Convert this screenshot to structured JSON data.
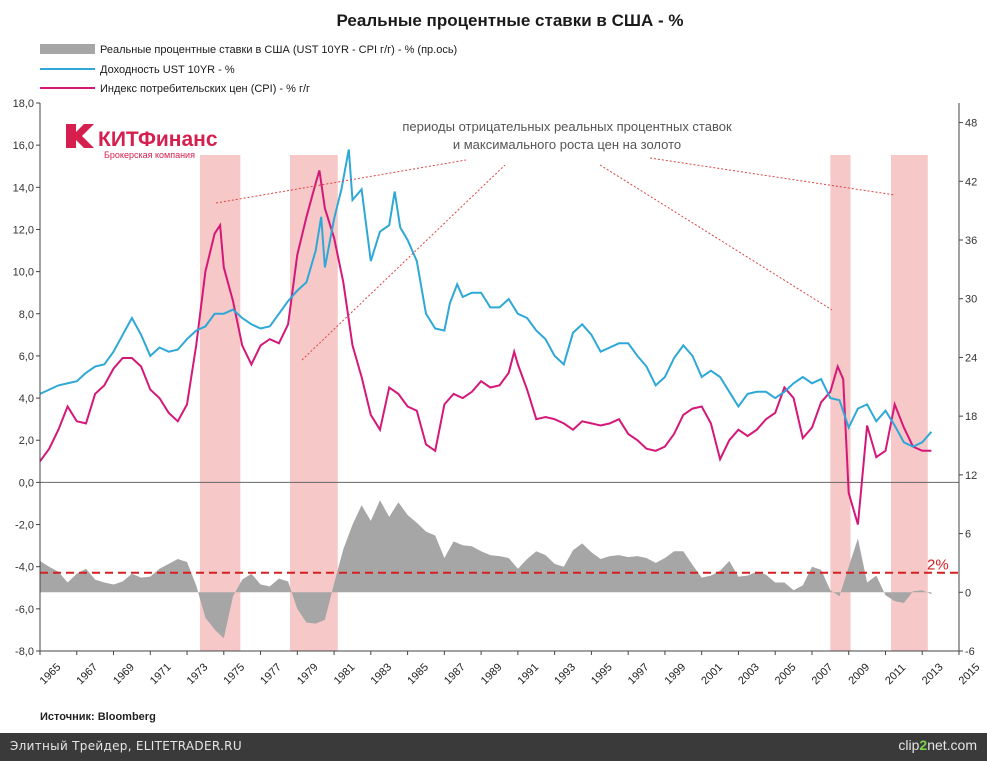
{
  "chart_data": {
    "type": "line",
    "title": "Реальные процентные ставки в США - %",
    "legend": [
      {
        "label": "Реальные процентные ставки в США (UST 10YR - CPI г/г) - % (пр.ось)",
        "color": "#a6a6a6",
        "kind": "area"
      },
      {
        "label": "Доходность UST 10YR - %",
        "color": "#2ea8d6",
        "kind": "line"
      },
      {
        "label": "Индекс потребительских цен (CPI) - % г/г",
        "color": "#d4187a",
        "kind": "line"
      }
    ],
    "legend_position": "top-left",
    "y_left": {
      "min": -8,
      "max": 18,
      "step": 2,
      "ticks": [
        "18,0",
        "16,0",
        "14,0",
        "12,0",
        "10,0",
        "8,0",
        "6,0",
        "4,0",
        "2,0",
        "0,0",
        "-2,0",
        "-4,0",
        "-6,0",
        "-8,0"
      ]
    },
    "y_right": {
      "min": -6,
      "max": 50,
      "ticks": [
        "48",
        "42",
        "36",
        "30",
        "24",
        "18",
        "12",
        "6",
        "0",
        "-6"
      ]
    },
    "x_axis": {
      "min": 1965,
      "max": 2015,
      "ticks": [
        "1965",
        "1967",
        "1969",
        "1971",
        "1973",
        "1975",
        "1977",
        "1979",
        "1981",
        "1983",
        "1985",
        "1987",
        "1989",
        "1991",
        "1993",
        "1995",
        "1997",
        "1999",
        "2001",
        "2003",
        "2005",
        "2007",
        "2009",
        "2011",
        "2013",
        "2015"
      ]
    },
    "grid": false,
    "highlight_periods": [
      [
        1973.7,
        1975.9
      ],
      [
        1978.6,
        1981.2
      ],
      [
        2008.0,
        2009.1
      ],
      [
        2011.3,
        2013.3
      ]
    ],
    "highlight_color": "#f7c8c8",
    "reference_line": {
      "value": 2,
      "axis": "right",
      "label": "2%",
      "color": "#d42020"
    },
    "annotation": {
      "lines": [
        "периоды отрицательных реальных процентных ставок",
        "и максимального роста цен на золото"
      ]
    },
    "series": [
      {
        "name": "Доходность UST 10YR - %",
        "axis": "left",
        "color": "#2ea8d6",
        "x": [
          1965,
          1966,
          1967,
          1967.5,
          1968,
          1968.5,
          1969,
          1969.5,
          1970,
          1970.5,
          1971,
          1971.5,
          1972,
          1972.5,
          1973,
          1973.5,
          1974,
          1974.5,
          1975,
          1975.5,
          1976,
          1976.5,
          1977,
          1977.5,
          1978,
          1978.5,
          1979,
          1979.5,
          1980,
          1980.3,
          1980.5,
          1981,
          1981.4,
          1981.8,
          1982,
          1982.5,
          1983,
          1983.5,
          1984,
          1984.3,
          1984.6,
          1985,
          1985.5,
          1986,
          1986.5,
          1987,
          1987.3,
          1987.7,
          1988,
          1988.5,
          1989,
          1989.5,
          1990,
          1990.5,
          1991,
          1991.5,
          1992,
          1992.5,
          1993,
          1993.5,
          1994,
          1994.5,
          1995,
          1995.5,
          1996,
          1996.5,
          1997,
          1997.5,
          1998,
          1998.5,
          1999,
          1999.5,
          2000,
          2000.5,
          2001,
          2001.5,
          2002,
          2002.5,
          2003,
          2003.5,
          2004,
          2004.5,
          2005,
          2005.5,
          2006,
          2006.5,
          2007,
          2007.5,
          2008,
          2008.5,
          2009,
          2009.5,
          2010,
          2010.5,
          2011,
          2011.5,
          2012,
          2012.5,
          2013,
          2013.5
        ],
        "y": [
          4.2,
          4.6,
          4.8,
          5.2,
          5.5,
          5.6,
          6.2,
          7.0,
          7.8,
          7.0,
          6.0,
          6.4,
          6.2,
          6.3,
          6.8,
          7.2,
          7.4,
          8.0,
          8.0,
          8.2,
          7.8,
          7.5,
          7.3,
          7.4,
          8.0,
          8.6,
          9.1,
          9.5,
          11.0,
          12.6,
          10.2,
          12.5,
          13.9,
          15.8,
          13.4,
          13.9,
          10.5,
          11.9,
          12.2,
          13.8,
          12.1,
          11.5,
          10.5,
          8.0,
          7.3,
          7.2,
          8.5,
          9.4,
          8.8,
          9.0,
          9.0,
          8.3,
          8.3,
          8.7,
          8.0,
          7.8,
          7.2,
          6.8,
          6.0,
          5.6,
          7.1,
          7.5,
          7.0,
          6.2,
          6.4,
          6.6,
          6.6,
          6.0,
          5.5,
          4.6,
          5.0,
          5.9,
          6.5,
          6.0,
          5.0,
          5.3,
          5.0,
          4.3,
          3.6,
          4.2,
          4.3,
          4.3,
          4.0,
          4.3,
          4.7,
          5.0,
          4.7,
          4.9,
          4.0,
          3.9,
          2.6,
          3.5,
          3.7,
          2.9,
          3.4,
          2.7,
          1.9,
          1.7,
          1.9,
          2.4
        ]
      },
      {
        "name": "Индекс потребительских цен (CPI) - % г/г",
        "axis": "left",
        "color": "#d4187a",
        "x": [
          1965,
          1965.5,
          1966,
          1966.5,
          1967,
          1967.5,
          1968,
          1968.5,
          1969,
          1969.5,
          1970,
          1970.5,
          1971,
          1971.5,
          1972,
          1972.5,
          1973,
          1973.5,
          1974,
          1974.5,
          1974.8,
          1975,
          1975.5,
          1976,
          1976.5,
          1977,
          1977.5,
          1978,
          1978.5,
          1979,
          1979.5,
          1980,
          1980.2,
          1980.5,
          1981,
          1981.5,
          1982,
          1982.5,
          1983,
          1983.5,
          1984,
          1984.5,
          1985,
          1985.5,
          1986,
          1986.5,
          1987,
          1987.5,
          1988,
          1988.5,
          1989,
          1989.5,
          1990,
          1990.5,
          1990.8,
          1991,
          1991.5,
          1992,
          1992.5,
          1993,
          1993.5,
          1994,
          1994.5,
          1995,
          1995.5,
          1996,
          1996.5,
          1997,
          1997.5,
          1998,
          1998.5,
          1999,
          1999.5,
          2000,
          2000.5,
          2001,
          2001.5,
          2002,
          2002.5,
          2003,
          2003.5,
          2004,
          2004.5,
          2005,
          2005.5,
          2006,
          2006.5,
          2007,
          2007.5,
          2008,
          2008.4,
          2008.7,
          2009,
          2009.5,
          2010,
          2010.5,
          2011,
          2011.5,
          2012,
          2012.5,
          2013,
          2013.5
        ],
        "y": [
          1.0,
          1.6,
          2.5,
          3.6,
          2.9,
          2.8,
          4.2,
          4.6,
          5.4,
          5.9,
          5.9,
          5.5,
          4.4,
          4.0,
          3.3,
          2.9,
          3.7,
          6.5,
          10.0,
          11.8,
          12.2,
          10.2,
          8.6,
          6.5,
          5.6,
          6.5,
          6.8,
          6.6,
          7.5,
          10.8,
          12.6,
          14.2,
          14.8,
          13.0,
          11.6,
          9.5,
          6.5,
          5.0,
          3.2,
          2.5,
          4.5,
          4.2,
          3.6,
          3.4,
          1.8,
          1.5,
          3.7,
          4.2,
          4.0,
          4.3,
          4.8,
          4.5,
          4.6,
          5.2,
          6.2,
          5.6,
          4.4,
          3.0,
          3.1,
          3.0,
          2.8,
          2.5,
          2.9,
          2.8,
          2.7,
          2.8,
          3.0,
          2.3,
          2.0,
          1.6,
          1.5,
          1.7,
          2.3,
          3.2,
          3.5,
          3.6,
          2.8,
          1.1,
          2.0,
          2.5,
          2.2,
          2.5,
          3.0,
          3.3,
          4.5,
          4.0,
          2.1,
          2.6,
          3.8,
          4.3,
          5.5,
          4.9,
          -0.5,
          -2.0,
          2.7,
          1.2,
          1.5,
          3.7,
          2.6,
          1.7,
          1.5,
          1.5
        ]
      },
      {
        "name": "Реальные процентные ставки в США (UST 10YR - CPI г/г) - % (пр.ось)",
        "axis": "right",
        "kind": "area",
        "color": "#a6a6a6",
        "x": [
          1965,
          1965.5,
          1966,
          1966.5,
          1967,
          1967.5,
          1968,
          1968.5,
          1969,
          1969.5,
          1970,
          1970.5,
          1971,
          1971.5,
          1972,
          1972.5,
          1973,
          1973.5,
          1974,
          1974.5,
          1975,
          1975.5,
          1976,
          1976.5,
          1977,
          1977.5,
          1978,
          1978.5,
          1979,
          1979.5,
          1980,
          1980.5,
          1981,
          1981.5,
          1982,
          1982.5,
          1983,
          1983.5,
          1984,
          1984.5,
          1985,
          1985.5,
          1986,
          1986.5,
          1987,
          1987.5,
          1988,
          1988.5,
          1989,
          1989.5,
          1990,
          1990.5,
          1991,
          1991.5,
          1992,
          1992.5,
          1993,
          1993.5,
          1994,
          1994.5,
          1995,
          1995.5,
          1996,
          1996.5,
          1997,
          1997.5,
          1998,
          1998.5,
          1999,
          1999.5,
          2000,
          2000.5,
          2001,
          2001.5,
          2002,
          2002.5,
          2003,
          2003.5,
          2004,
          2004.5,
          2005,
          2005.5,
          2006,
          2006.5,
          2007,
          2007.5,
          2008,
          2008.5,
          2009,
          2009.5,
          2010,
          2010.5,
          2011,
          2011.5,
          2012,
          2012.5,
          2013,
          2013.5
        ],
        "y": [
          3.2,
          2.6,
          2.1,
          1.0,
          1.9,
          2.4,
          1.3,
          1.0,
          0.8,
          1.1,
          1.9,
          1.5,
          1.6,
          2.4,
          2.9,
          3.4,
          3.1,
          0.7,
          -2.6,
          -3.8,
          -4.7,
          -0.4,
          1.3,
          1.9,
          0.8,
          0.6,
          1.4,
          1.1,
          -1.7,
          -3.1,
          -3.2,
          -2.8,
          0.9,
          4.4,
          6.9,
          8.9,
          7.3,
          9.4,
          7.7,
          9.2,
          7.9,
          7.1,
          6.2,
          5.8,
          3.5,
          5.2,
          4.8,
          4.7,
          4.2,
          3.8,
          3.7,
          3.5,
          2.4,
          3.4,
          4.2,
          3.8,
          2.9,
          2.6,
          4.3,
          5.0,
          4.1,
          3.4,
          3.7,
          3.8,
          3.6,
          3.7,
          3.5,
          3.0,
          3.5,
          4.2,
          4.2,
          2.8,
          1.5,
          1.7,
          2.2,
          3.2,
          1.6,
          1.7,
          2.1,
          1.8,
          1.0,
          1.0,
          0.2,
          0.7,
          2.6,
          2.3,
          0.2,
          -0.4,
          2.6,
          5.5,
          1.0,
          1.7,
          -0.3,
          -0.9,
          -1.1,
          0.1,
          0.2,
          -0.2
        ]
      }
    ],
    "source": "Источник: Bloomberg"
  },
  "logo": {
    "name": "КИТФинанс",
    "subtitle": "Брокерская компания"
  },
  "footer": {
    "left": "Элитный Трейдер, ELITETRADER.RU",
    "right_pre": "clip",
    "right_hl": "2",
    "right_post": "net.com"
  }
}
